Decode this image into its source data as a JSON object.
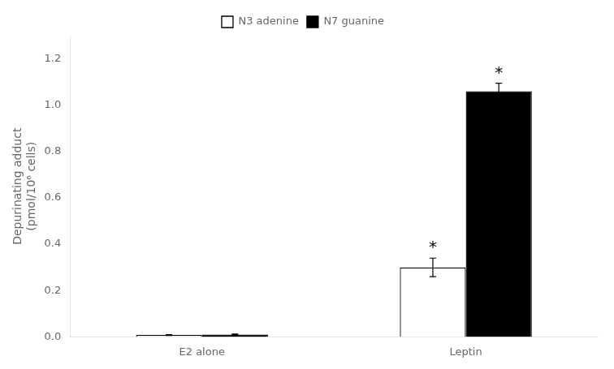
{
  "chart_data": {
    "type": "bar",
    "categories": [
      "E2 alone",
      "Leptin"
    ],
    "series": [
      {
        "name": "N3 adenine",
        "color": "white",
        "values": [
          0.008,
          0.3
        ],
        "errors": [
          0.002,
          0.04
        ]
      },
      {
        "name": "N7 guanine",
        "color": "black",
        "values": [
          0.01,
          1.06
        ],
        "errors": [
          0.002,
          0.035
        ]
      }
    ],
    "ylabel": "Depurinating adduct\n(pmol/10⁶ cells)",
    "ylim": [
      0,
      1.3
    ],
    "yticks": [
      {
        "value": 0,
        "label": "0.0"
      },
      0.2,
      0.4,
      0.6,
      0.8,
      {
        "value": 1,
        "label": "1.0"
      },
      1.2
    ],
    "grid": false,
    "legend": "top",
    "annotations": [
      {
        "text": "*",
        "category": "Leptin",
        "series": "N3 adenine"
      },
      {
        "text": "*",
        "category": "Leptin",
        "series": "N7 guanine"
      }
    ]
  }
}
